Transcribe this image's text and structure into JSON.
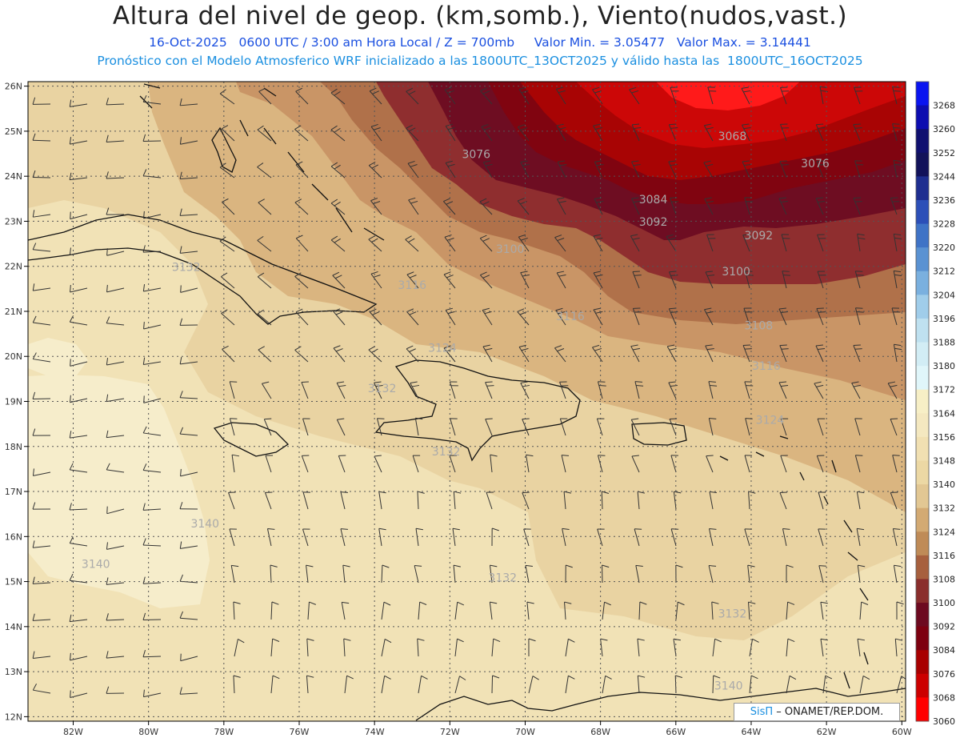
{
  "header": {
    "title": "Altura del nivel de geop. (km,somb.), Viento(nudos,vast.)",
    "date": "16-Oct-2025",
    "time": "0600 UTC / 3:00 am Hora Local / Z = 700mb",
    "valmin": "Valor Min. = 3.05477",
    "valmax": "Valor Max. = 3.14441",
    "model_line": "Pronóstico con el Modelo Atmosferico WRF inicializado a las 1800UTC_13OCT2025 y válido hasta las  1800UTC_16OCT2025"
  },
  "map": {
    "lon_range": [
      -83.2,
      -59.9
    ],
    "lat_range": [
      11.9,
      26.1
    ],
    "lon_ticks": [
      "82W",
      "80W",
      "78W",
      "76W",
      "74W",
      "72W",
      "70W",
      "68W",
      "66W",
      "64W",
      "62W",
      "60W"
    ],
    "lat_ticks": [
      "12N",
      "13N",
      "14N",
      "15N",
      "16N",
      "17N",
      "18N",
      "19N",
      "20N",
      "21N",
      "22N",
      "23N",
      "24N",
      "25N",
      "26N"
    ],
    "contour_labels": [
      {
        "text": "3068",
        "lon": -64.5,
        "lat": 24.8
      },
      {
        "text": "3076",
        "lon": -71.3,
        "lat": 24.4
      },
      {
        "text": "3076",
        "lon": -62.3,
        "lat": 24.2
      },
      {
        "text": "3084",
        "lon": -66.6,
        "lat": 23.4
      },
      {
        "text": "3092",
        "lon": -66.6,
        "lat": 22.9
      },
      {
        "text": "3092",
        "lon": -63.8,
        "lat": 22.6
      },
      {
        "text": "3100",
        "lon": -70.4,
        "lat": 22.3
      },
      {
        "text": "3100",
        "lon": -64.4,
        "lat": 21.8
      },
      {
        "text": "3108",
        "lon": -63.8,
        "lat": 20.6
      },
      {
        "text": "3116",
        "lon": -73.0,
        "lat": 21.5
      },
      {
        "text": "3116",
        "lon": -68.8,
        "lat": 20.8
      },
      {
        "text": "3116",
        "lon": -63.6,
        "lat": 19.7
      },
      {
        "text": "3124",
        "lon": -72.2,
        "lat": 20.1
      },
      {
        "text": "3124",
        "lon": -63.5,
        "lat": 18.5
      },
      {
        "text": "3132",
        "lon": -79.0,
        "lat": 21.9
      },
      {
        "text": "3132",
        "lon": -73.8,
        "lat": 19.2
      },
      {
        "text": "3132",
        "lon": -72.1,
        "lat": 17.8
      },
      {
        "text": "3132",
        "lon": -70.6,
        "lat": 15.0
      },
      {
        "text": "3132",
        "lon": -64.5,
        "lat": 14.2
      },
      {
        "text": "3140",
        "lon": -78.5,
        "lat": 16.2
      },
      {
        "text": "3140",
        "lon": -81.4,
        "lat": 15.3
      },
      {
        "text": "3140",
        "lon": -64.6,
        "lat": 12.6
      }
    ]
  },
  "colorbar": {
    "labels": [
      "3268",
      "3260",
      "3252",
      "3244",
      "3236",
      "3228",
      "3220",
      "3212",
      "3204",
      "3196",
      "3188",
      "3180",
      "3172",
      "3164",
      "3156",
      "3148",
      "3140",
      "3132",
      "3124",
      "3116",
      "3108",
      "3100",
      "3092",
      "3084",
      "3076",
      "3068",
      "3060"
    ],
    "colors": [
      "#0a14f0",
      "#0d0db0",
      "#101070",
      "#12125a",
      "#1e2e90",
      "#2c4fb8",
      "#3f73c6",
      "#5a92d2",
      "#7ab0df",
      "#a0cdea",
      "#bfe1f0",
      "#d2edf5",
      "#e0f6fa",
      "#f7efc6",
      "#f4e8c0",
      "#f1e0b2",
      "#ecd8a4",
      "#e2c793",
      "#d3aa73",
      "#bf8b57",
      "#a7603e",
      "#8a2e2c",
      "#6d0a20",
      "#7d0010",
      "#a80000",
      "#cc0000",
      "#ff0000"
    ]
  },
  "credit": {
    "brand": "SisΠ",
    "text": " – ONAMET/REP.DOM."
  }
}
